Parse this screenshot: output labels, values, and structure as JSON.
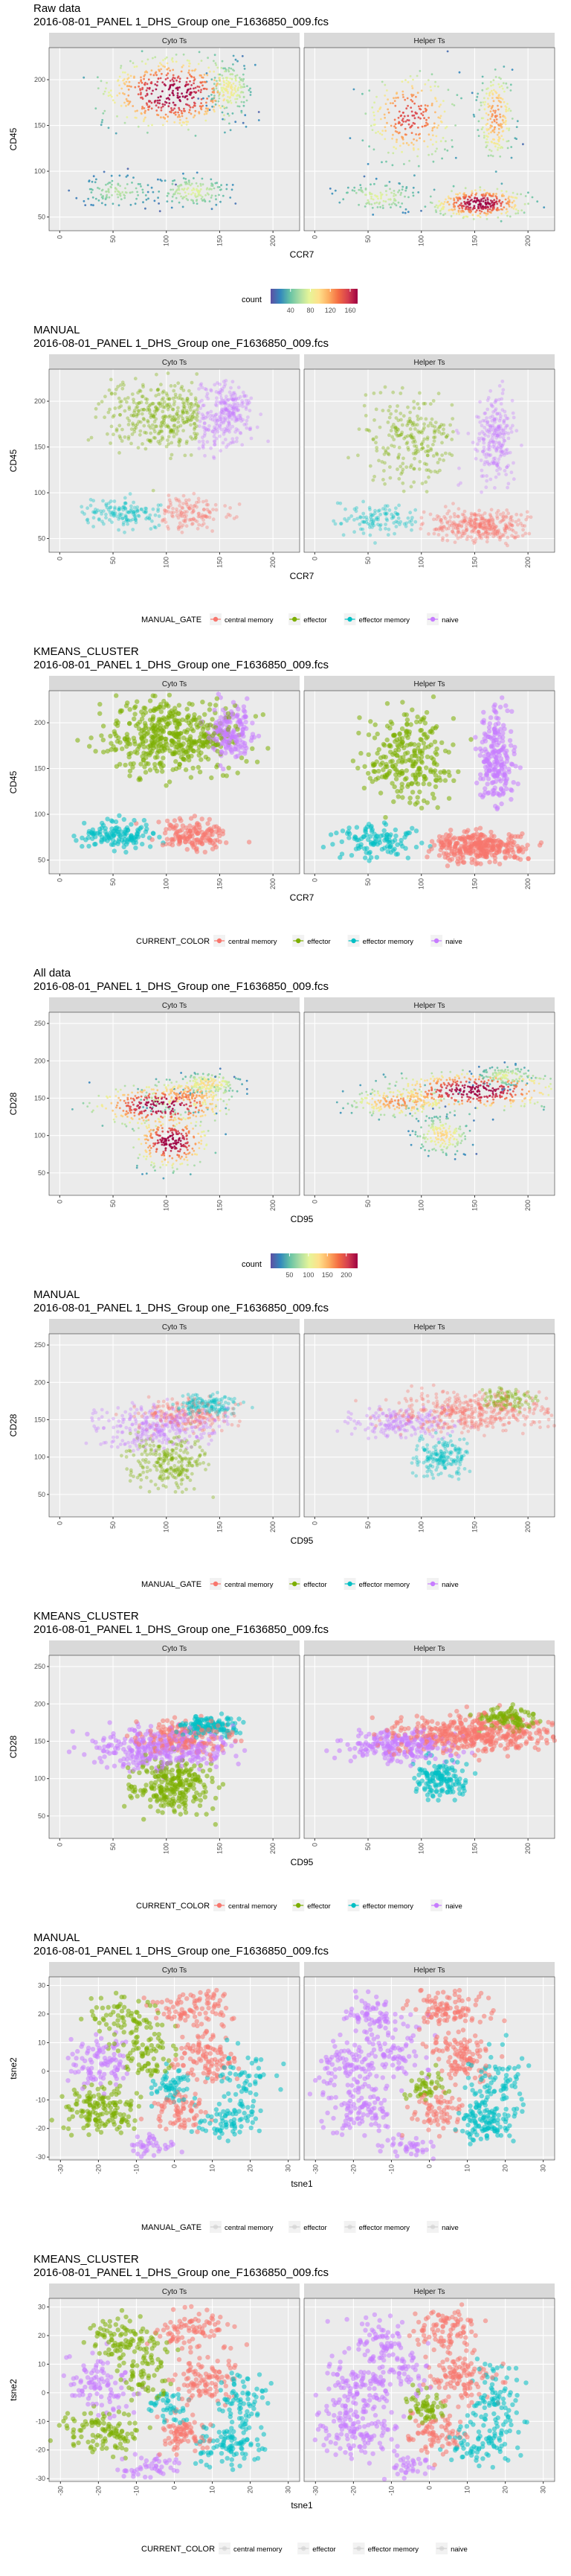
{
  "sample_file": "2016-08-01_PANEL 1_DHS_Group one_F1636850_009.fcs",
  "strip_labels": [
    "Cyto Ts",
    "Helper Ts"
  ],
  "colors": {
    "central memory": "#F8766D",
    "effector": "#7CAE00",
    "effector memory": "#00BFC4",
    "naive": "#C77CFF",
    "panel_bg": "#EBEBEB",
    "strip_bg": "#D9D9D9",
    "density_low": "#5E4FA2",
    "density_high": "#9E0142"
  },
  "chart_data": [
    {
      "type": "scatter",
      "title": "Raw data",
      "subtitle": "2016-08-01_PANEL 1_DHS_Group one_F1636850_009.fcs",
      "xlabel": "CCR7",
      "ylabel": "CD45",
      "xlim": [
        -10,
        225
      ],
      "ylim": [
        35,
        235
      ],
      "xticks": [
        0,
        50,
        100,
        150,
        200
      ],
      "yticks": [
        50,
        100,
        150,
        200
      ],
      "color_mode": "density",
      "legend": {
        "kind": "colorbar",
        "title": "count",
        "ticks": [
          40,
          80,
          120,
          160
        ],
        "range": [
          0,
          175
        ]
      }
    },
    {
      "type": "scatter",
      "title": "MANUAL",
      "subtitle": "2016-08-01_PANEL 1_DHS_Group one_F1636850_009.fcs",
      "xlabel": "CCR7",
      "ylabel": "CD45",
      "xlim": [
        -10,
        225
      ],
      "ylim": [
        35,
        235
      ],
      "xticks": [
        0,
        50,
        100,
        150,
        200
      ],
      "yticks": [
        50,
        100,
        150,
        200
      ],
      "color_mode": "gate",
      "legend": {
        "kind": "categorical",
        "title": "MANUAL_GATE",
        "entries": [
          "central memory",
          "effector",
          "effector memory",
          "naive"
        ]
      }
    },
    {
      "type": "scatter",
      "title": "KMEANS_CLUSTER",
      "subtitle": "2016-08-01_PANEL 1_DHS_Group one_F1636850_009.fcs",
      "xlabel": "CCR7",
      "ylabel": "CD45",
      "xlim": [
        -10,
        225
      ],
      "ylim": [
        35,
        235
      ],
      "xticks": [
        0,
        50,
        100,
        150,
        200
      ],
      "yticks": [
        50,
        100,
        150,
        200
      ],
      "color_mode": "cluster",
      "legend": {
        "kind": "categorical",
        "title": "CURRENT_COLOR",
        "entries": [
          "central memory",
          "effector",
          "effector memory",
          "naive"
        ]
      }
    },
    {
      "type": "scatter",
      "title": "All data",
      "subtitle": "2016-08-01_PANEL 1_DHS_Group one_F1636850_009.fcs",
      "xlabel": "CD95",
      "ylabel": "CD28",
      "xlim": [
        -10,
        225
      ],
      "ylim": [
        20,
        265
      ],
      "xticks": [
        0,
        50,
        100,
        150,
        200
      ],
      "yticks": [
        50,
        100,
        150,
        200,
        250
      ],
      "color_mode": "density",
      "legend": {
        "kind": "colorbar",
        "title": "count",
        "ticks": [
          50,
          100,
          150,
          200
        ],
        "range": [
          0,
          230
        ]
      }
    },
    {
      "type": "scatter",
      "title": "MANUAL",
      "subtitle": "2016-08-01_PANEL 1_DHS_Group one_F1636850_009.fcs",
      "xlabel": "CD95",
      "ylabel": "CD28",
      "xlim": [
        -10,
        225
      ],
      "ylim": [
        20,
        265
      ],
      "xticks": [
        0,
        50,
        100,
        150,
        200
      ],
      "yticks": [
        50,
        100,
        150,
        200,
        250
      ],
      "color_mode": "gate",
      "legend": {
        "kind": "categorical",
        "title": "MANUAL_GATE",
        "entries": [
          "central memory",
          "effector",
          "effector memory",
          "naive"
        ]
      }
    },
    {
      "type": "scatter",
      "title": "KMEANS_CLUSTER",
      "subtitle": "2016-08-01_PANEL 1_DHS_Group one_F1636850_009.fcs",
      "xlabel": "CD95",
      "ylabel": "CD28",
      "xlim": [
        -10,
        225
      ],
      "ylim": [
        20,
        265
      ],
      "xticks": [
        0,
        50,
        100,
        150,
        200
      ],
      "yticks": [
        50,
        100,
        150,
        200,
        250
      ],
      "color_mode": "cluster",
      "legend": {
        "kind": "categorical",
        "title": "CURRENT_COLOR",
        "entries": [
          "central memory",
          "effector",
          "effector memory",
          "naive"
        ]
      }
    },
    {
      "type": "scatter",
      "title": "MANUAL",
      "subtitle": "2016-08-01_PANEL 1_DHS_Group one_F1636850_009.fcs",
      "xlabel": "tsne1",
      "ylabel": "tsne2",
      "xlim": [
        -33,
        33
      ],
      "ylim": [
        -31,
        33
      ],
      "xticks": [
        -30,
        -20,
        -10,
        0,
        10,
        20,
        30
      ],
      "yticks": [
        -30,
        -20,
        -10,
        0,
        10,
        20,
        30
      ],
      "color_mode": "tsne",
      "legend": {
        "kind": "categorical",
        "title": "MANUAL_GATE",
        "entries": [
          "central memory",
          "effector",
          "effector memory",
          "naive"
        ],
        "muted": true
      }
    },
    {
      "type": "scatter",
      "title": "KMEANS_CLUSTER",
      "subtitle": "2016-08-01_PANEL 1_DHS_Group one_F1636850_009.fcs",
      "xlabel": "tsne1",
      "ylabel": "tsne2",
      "xlim": [
        -33,
        33
      ],
      "ylim": [
        -31,
        33
      ],
      "xticks": [
        -30,
        -20,
        -10,
        0,
        10,
        20,
        30
      ],
      "yticks": [
        -30,
        -20,
        -10,
        0,
        10,
        20,
        30
      ],
      "color_mode": "tsne",
      "legend": {
        "kind": "categorical",
        "title": "CURRENT_COLOR",
        "entries": [
          "central memory",
          "effector",
          "effector memory",
          "naive"
        ],
        "muted": true
      }
    }
  ]
}
